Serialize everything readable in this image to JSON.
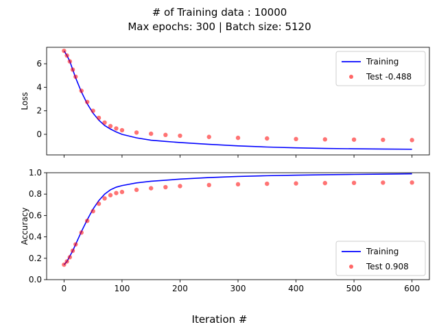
{
  "figure": {
    "suptitle_line1": "# of Training data : 10000",
    "suptitle_line2": "Max epochs: 300 | Batch size: 5120",
    "xlabel": "Iteration #"
  },
  "colors": {
    "training": "#0000ff",
    "test": "#ff0000"
  },
  "chart_data": [
    {
      "type": "line",
      "ylabel": "Loss",
      "xlim": [
        -30,
        630
      ],
      "ylim": [
        -1.75,
        7.4
      ],
      "xticks": [
        0,
        100,
        200,
        300,
        400,
        500,
        600
      ],
      "show_x_ticklabels": false,
      "yticks": [
        0,
        2,
        4,
        6
      ],
      "legend_position": "top-right",
      "series": [
        {
          "name": "Training",
          "kind": "line",
          "x": [
            0,
            5,
            10,
            15,
            20,
            30,
            40,
            50,
            60,
            70,
            80,
            90,
            100,
            125,
            150,
            175,
            200,
            250,
            300,
            350,
            400,
            450,
            500,
            550,
            600
          ],
          "y": [
            7.1,
            6.7,
            6.2,
            5.5,
            4.8,
            3.6,
            2.6,
            1.8,
            1.2,
            0.75,
            0.45,
            0.2,
            0.0,
            -0.3,
            -0.5,
            -0.6,
            -0.7,
            -0.85,
            -0.98,
            -1.08,
            -1.15,
            -1.2,
            -1.23,
            -1.25,
            -1.27
          ]
        },
        {
          "name": "Test -0.488",
          "kind": "scatter",
          "x": [
            0,
            5,
            10,
            15,
            20,
            30,
            40,
            50,
            60,
            70,
            80,
            90,
            100,
            125,
            150,
            175,
            200,
            250,
            300,
            350,
            400,
            450,
            500,
            550,
            600
          ],
          "y": [
            7.1,
            6.7,
            6.2,
            5.5,
            4.9,
            3.7,
            2.75,
            2.0,
            1.4,
            1.0,
            0.7,
            0.5,
            0.35,
            0.15,
            0.05,
            -0.05,
            -0.12,
            -0.22,
            -0.3,
            -0.35,
            -0.4,
            -0.43,
            -0.45,
            -0.47,
            -0.49
          ]
        }
      ]
    },
    {
      "type": "line",
      "ylabel": "Accuracy",
      "xlim": [
        -30,
        630
      ],
      "ylim": [
        0.0,
        1.0
      ],
      "xticks": [
        0,
        100,
        200,
        300,
        400,
        500,
        600
      ],
      "show_x_ticklabels": true,
      "yticks": [
        0.0,
        0.2,
        0.4,
        0.6,
        0.8,
        1.0
      ],
      "legend_position": "bottom-right",
      "series": [
        {
          "name": "Training",
          "kind": "line",
          "x": [
            0,
            5,
            10,
            15,
            20,
            30,
            40,
            50,
            60,
            70,
            80,
            90,
            100,
            125,
            150,
            175,
            200,
            250,
            300,
            350,
            400,
            450,
            500,
            550,
            600
          ],
          "y": [
            0.14,
            0.17,
            0.22,
            0.27,
            0.33,
            0.45,
            0.56,
            0.66,
            0.74,
            0.8,
            0.84,
            0.865,
            0.88,
            0.905,
            0.92,
            0.93,
            0.94,
            0.955,
            0.965,
            0.972,
            0.977,
            0.981,
            0.984,
            0.987,
            0.99
          ]
        },
        {
          "name": "Test 0.908",
          "kind": "scatter",
          "x": [
            0,
            5,
            10,
            15,
            20,
            30,
            40,
            50,
            60,
            70,
            80,
            90,
            100,
            125,
            150,
            175,
            200,
            250,
            300,
            350,
            400,
            450,
            500,
            550,
            600
          ],
          "y": [
            0.14,
            0.17,
            0.21,
            0.27,
            0.33,
            0.44,
            0.55,
            0.64,
            0.71,
            0.76,
            0.79,
            0.81,
            0.82,
            0.84,
            0.855,
            0.865,
            0.875,
            0.885,
            0.892,
            0.897,
            0.9,
            0.903,
            0.905,
            0.907,
            0.908
          ]
        }
      ]
    }
  ]
}
